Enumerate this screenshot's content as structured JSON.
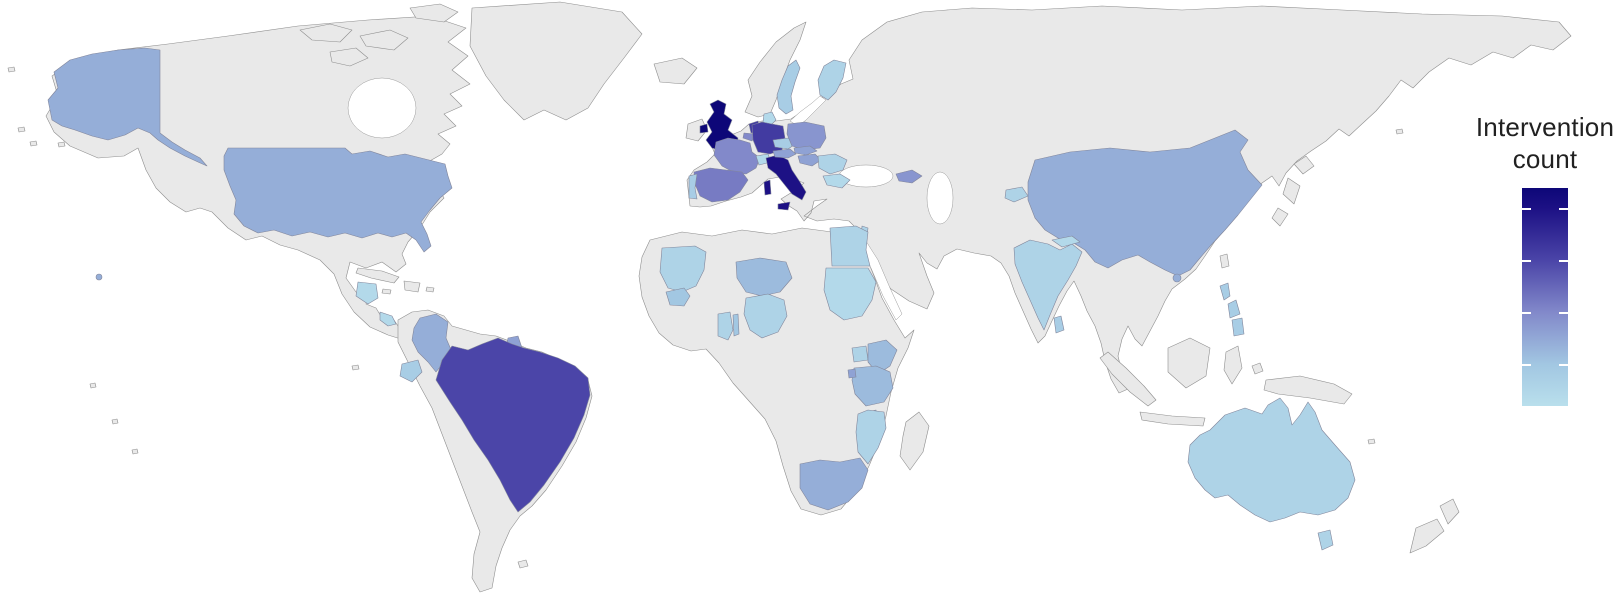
{
  "figure": {
    "ocean_color": "#ffffff",
    "no_data_land_color": "#e9e9e9",
    "border_color": "#8e8e8e"
  },
  "legend": {
    "title_line1": "Intervention",
    "title_line2": "count",
    "ticks": [
      20,
      15,
      10,
      5
    ],
    "value_range": [
      1,
      22
    ]
  },
  "color_scale": {
    "stops": [
      {
        "value": 1,
        "color": "#b9dfec"
      },
      {
        "value": 5,
        "color": "#a2c7e2"
      },
      {
        "value": 10,
        "color": "#8289ca"
      },
      {
        "value": 15,
        "color": "#4b45a8"
      },
      {
        "value": 20,
        "color": "#1d1185"
      },
      {
        "value": 22,
        "color": "#0d0778"
      }
    ]
  },
  "chart_data": {
    "type": "heatmap",
    "variant": "choropleth-world-map",
    "title": "Intervention count",
    "legend_position": "right",
    "value_range": [
      1,
      22
    ],
    "no_data_fill": "#e9e9e9",
    "countries": [
      {
        "id": "united-kingdom",
        "name": "United Kingdom",
        "value": 22
      },
      {
        "id": "italy",
        "name": "Italy",
        "value": 20
      },
      {
        "id": "germany",
        "name": "Germany",
        "value": 16
      },
      {
        "id": "netherlands",
        "name": "Netherlands",
        "value": 16
      },
      {
        "id": "brazil",
        "name": "Brazil",
        "value": 15
      },
      {
        "id": "spain",
        "name": "Spain",
        "value": 11
      },
      {
        "id": "france",
        "name": "France",
        "value": 10
      },
      {
        "id": "belgium",
        "name": "Belgium",
        "value": 10
      },
      {
        "id": "poland",
        "name": "Poland",
        "value": 9
      },
      {
        "id": "georgia",
        "name": "Georgia",
        "value": 9
      },
      {
        "id": "austria",
        "name": "Austria",
        "value": 8
      },
      {
        "id": "hungary",
        "name": "Hungary",
        "value": 8
      },
      {
        "id": "slovakia",
        "name": "Slovakia",
        "value": 8
      },
      {
        "id": "guyana",
        "name": "Guyana",
        "value": 8
      },
      {
        "id": "rwanda",
        "name": "Rwanda",
        "value": 8
      },
      {
        "id": "united-states",
        "name": "United States",
        "value": 7
      },
      {
        "id": "china",
        "name": "China",
        "value": 7
      },
      {
        "id": "south-africa",
        "name": "South Africa",
        "value": 7
      },
      {
        "id": "colombia",
        "name": "Colombia",
        "value": 7
      },
      {
        "id": "kenya",
        "name": "Kenya",
        "value": 6
      },
      {
        "id": "tanzania",
        "name": "Tanzania",
        "value": 6
      },
      {
        "id": "niger",
        "name": "Niger",
        "value": 6
      },
      {
        "id": "togo",
        "name": "Togo",
        "value": 5
      },
      {
        "id": "senegal",
        "name": "Senegal",
        "value": 5
      },
      {
        "id": "sweden",
        "name": "Sweden",
        "value": 4
      },
      {
        "id": "czechia",
        "name": "Czechia",
        "value": 4
      },
      {
        "id": "portugal",
        "name": "Portugal",
        "value": 4
      },
      {
        "id": "ecuador",
        "name": "Ecuador",
        "value": 4
      },
      {
        "id": "philippines",
        "name": "Philippines",
        "value": 4
      },
      {
        "id": "sri-lanka",
        "name": "Sri Lanka",
        "value": 4
      },
      {
        "id": "israel",
        "name": "Israel",
        "value": 3
      },
      {
        "id": "egypt",
        "name": "Egypt",
        "value": 3
      },
      {
        "id": "mauritania",
        "name": "Mauritania",
        "value": 3
      },
      {
        "id": "nigeria",
        "name": "Nigeria",
        "value": 3
      },
      {
        "id": "ghana",
        "name": "Ghana",
        "value": 3
      },
      {
        "id": "uganda",
        "name": "Uganda",
        "value": 3
      },
      {
        "id": "mozambique",
        "name": "Mozambique",
        "value": 3
      },
      {
        "id": "romania",
        "name": "Romania",
        "value": 3
      },
      {
        "id": "australia",
        "name": "Australia",
        "value": 3
      },
      {
        "id": "india",
        "name": "India",
        "value": 3
      },
      {
        "id": "tajikistan",
        "name": "Tajikistan",
        "value": 3
      },
      {
        "id": "finland",
        "name": "Finland",
        "value": 3
      },
      {
        "id": "bulgaria",
        "name": "Bulgaria",
        "value": 2
      },
      {
        "id": "sudan",
        "name": "Sudan",
        "value": 2
      },
      {
        "id": "nepal",
        "name": "Nepal",
        "value": 2
      },
      {
        "id": "malawi",
        "name": "Malawi",
        "value": 2
      },
      {
        "id": "denmark",
        "name": "Denmark",
        "value": 2
      },
      {
        "id": "switzerland",
        "name": "Switzerland",
        "value": 2
      },
      {
        "id": "guatemala",
        "name": "Guatemala",
        "value": 2
      },
      {
        "id": "costa-rica",
        "name": "Costa Rica",
        "value": 2
      }
    ]
  }
}
